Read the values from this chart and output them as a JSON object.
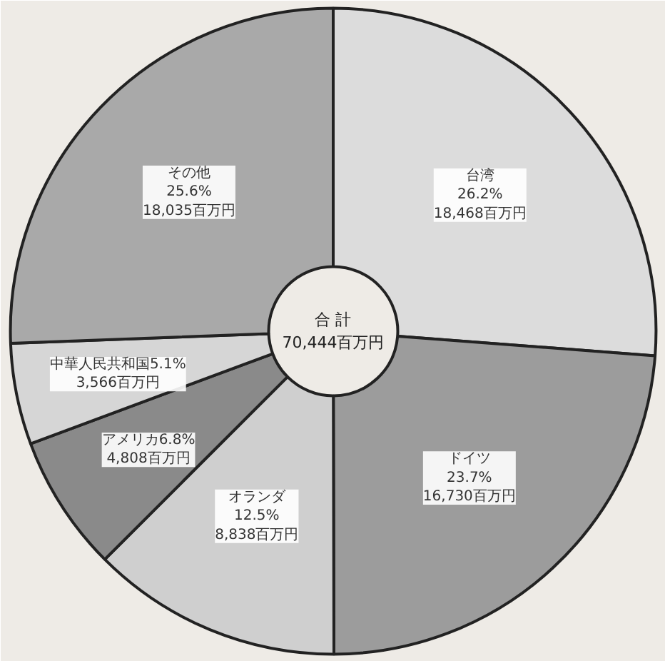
{
  "chart_data": {
    "type": "donut",
    "categories": [
      "台湾",
      "ドイツ",
      "オランダ",
      "アメリカ",
      "中華人民共和国",
      "その他"
    ],
    "values": [
      18468,
      16730,
      8838,
      4808,
      3566,
      18035
    ],
    "value_labels": [
      "26.2%\n18,468百万円",
      "23.7%\n16,730百万円",
      "12.5%\n8,838百万円",
      "6.8%\n4,808百万円",
      "5.1%\n3,566百万円",
      "25.6%\n18,035百万円"
    ],
    "colors": [
      "#dcdcdc",
      "#9c9c9c",
      "#cfcfcf",
      "#8a8a8a",
      "#d6d6d6",
      "#a9a9a9"
    ],
    "annotations": [
      "合 計\n70,444百万円"
    ]
  }
}
